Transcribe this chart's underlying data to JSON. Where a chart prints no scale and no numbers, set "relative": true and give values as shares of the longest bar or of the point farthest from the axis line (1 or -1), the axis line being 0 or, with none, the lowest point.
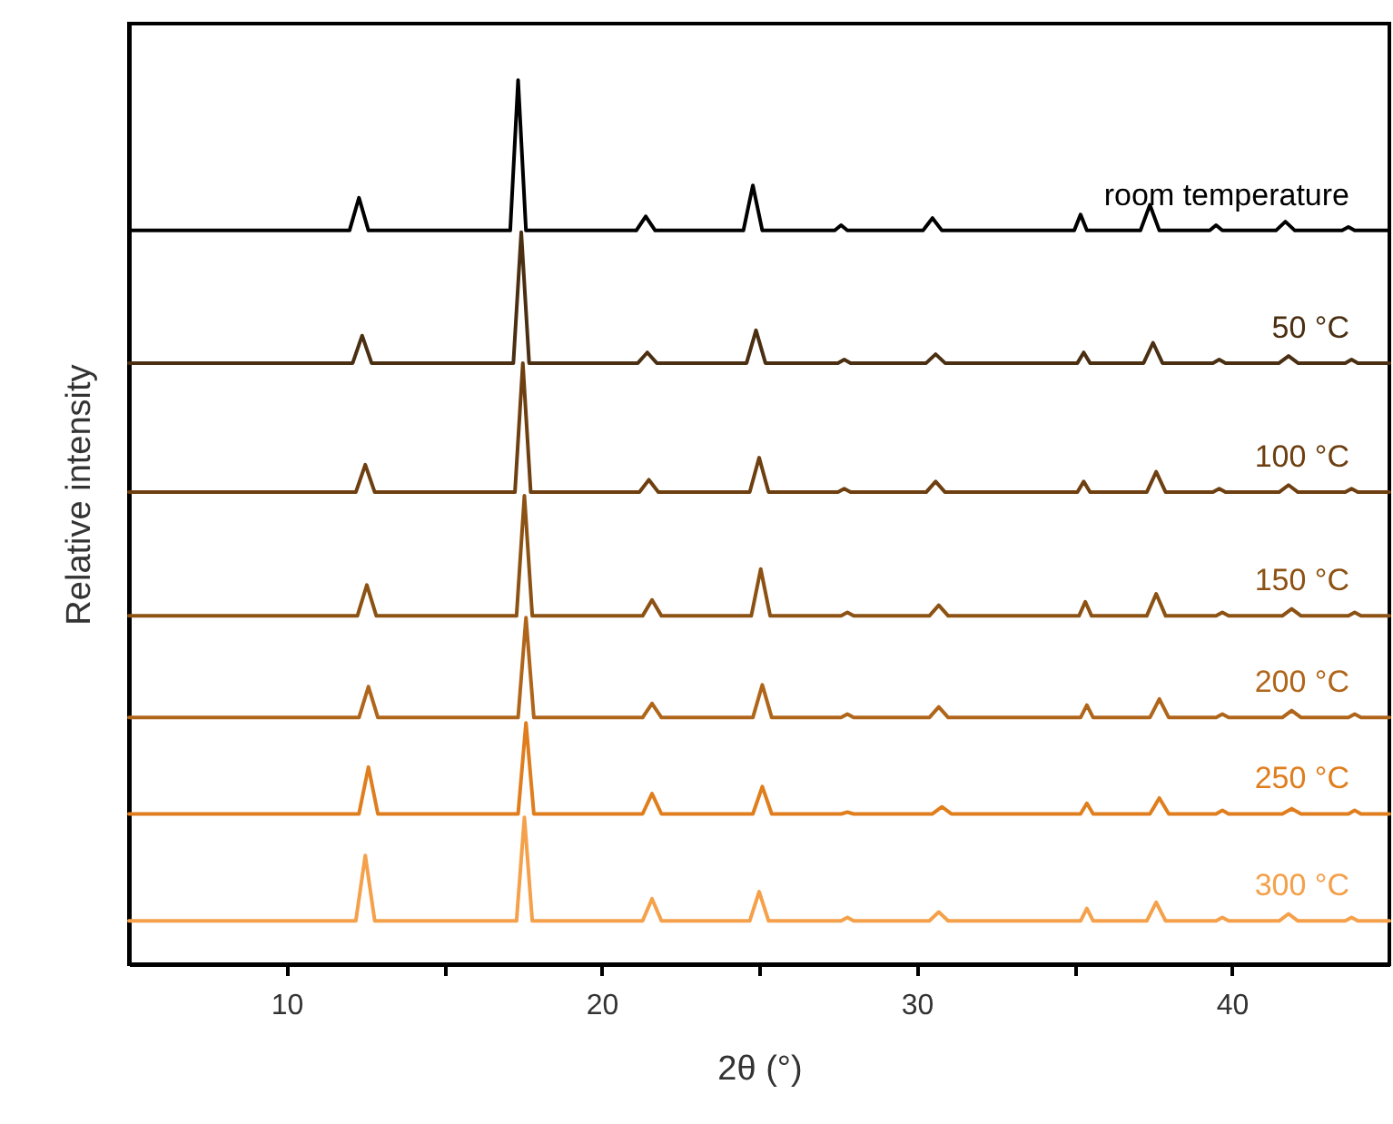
{
  "chart_data": {
    "type": "line",
    "relative": true,
    "xlabel": "2θ (°)",
    "ylabel": "Relative intensity",
    "xlim": [
      5,
      45
    ],
    "xticks": [
      10,
      {
        "value": 15,
        "label": null
      },
      20,
      {
        "value": 25,
        "label": null
      },
      30,
      {
        "value": 35,
        "label": null
      },
      40
    ],
    "legend": false,
    "grid": false,
    "line_style": "solid",
    "marker": "none",
    "series": [
      {
        "name": "room temperature",
        "color": "#000000",
        "x": [
          5,
          12.0,
          12.3,
          12.6,
          17.1,
          17.35,
          17.6,
          21.1,
          21.4,
          21.7,
          24.5,
          24.8,
          25.1,
          27.4,
          27.6,
          27.8,
          30.2,
          30.5,
          30.8,
          35.0,
          35.2,
          35.4,
          37.1,
          37.4,
          37.7,
          39.3,
          39.5,
          39.7,
          41.4,
          41.7,
          42.0,
          43.5,
          43.7,
          43.9,
          45
        ],
        "values": [
          0.83,
          0.83,
          0.867,
          0.83,
          0.83,
          1.0,
          0.83,
          0.83,
          0.846,
          0.83,
          0.83,
          0.881,
          0.83,
          0.83,
          0.836,
          0.83,
          0.83,
          0.844,
          0.83,
          0.83,
          0.848,
          0.83,
          0.83,
          0.859,
          0.83,
          0.83,
          0.836,
          0.83,
          0.83,
          0.84,
          0.83,
          0.83,
          0.834,
          0.83,
          0.83
        ]
      },
      {
        "name": "50 °C",
        "color": "#4a2f12",
        "x": [
          5,
          12.1,
          12.4,
          12.7,
          17.2,
          17.45,
          17.7,
          21.15,
          21.45,
          21.75,
          24.6,
          24.9,
          25.2,
          27.5,
          27.7,
          27.9,
          30.3,
          30.6,
          30.9,
          35.1,
          35.3,
          35.5,
          37.2,
          37.5,
          37.8,
          39.4,
          39.6,
          39.8,
          41.5,
          41.8,
          42.1,
          43.6,
          43.8,
          44.0,
          45
        ],
        "values": [
          0.68,
          0.68,
          0.711,
          0.68,
          0.68,
          0.828,
          0.68,
          0.68,
          0.692,
          0.68,
          0.68,
          0.717,
          0.68,
          0.68,
          0.684,
          0.68,
          0.68,
          0.69,
          0.68,
          0.68,
          0.692,
          0.68,
          0.68,
          0.703,
          0.68,
          0.68,
          0.684,
          0.68,
          0.68,
          0.688,
          0.68,
          0.68,
          0.684,
          0.68,
          0.68
        ]
      },
      {
        "name": "100 °C",
        "color": "#6e3f10",
        "x": [
          5,
          12.2,
          12.5,
          12.8,
          17.25,
          17.5,
          17.75,
          21.2,
          21.5,
          21.8,
          24.7,
          25.0,
          25.3,
          27.5,
          27.7,
          27.9,
          30.3,
          30.6,
          30.9,
          35.1,
          35.3,
          35.5,
          37.3,
          37.6,
          37.9,
          39.4,
          39.6,
          39.8,
          41.5,
          41.8,
          42.1,
          43.6,
          43.8,
          44.0,
          45
        ],
        "values": [
          0.534,
          0.534,
          0.565,
          0.534,
          0.534,
          0.68,
          0.534,
          0.534,
          0.548,
          0.534,
          0.534,
          0.573,
          0.534,
          0.534,
          0.538,
          0.534,
          0.534,
          0.546,
          0.534,
          0.534,
          0.546,
          0.534,
          0.534,
          0.557,
          0.534,
          0.534,
          0.538,
          0.534,
          0.534,
          0.542,
          0.534,
          0.534,
          0.538,
          0.534,
          0.534
        ]
      },
      {
        "name": "150 °C",
        "color": "#8c5214",
        "x": [
          5,
          12.25,
          12.55,
          12.85,
          17.3,
          17.55,
          17.8,
          21.3,
          21.6,
          21.9,
          24.75,
          25.05,
          25.35,
          27.6,
          27.8,
          28.0,
          30.4,
          30.7,
          31.0,
          35.15,
          35.35,
          35.55,
          37.3,
          37.6,
          37.9,
          39.5,
          39.7,
          39.9,
          41.6,
          41.9,
          42.2,
          43.7,
          43.9,
          44.1,
          45
        ],
        "values": [
          0.394,
          0.394,
          0.429,
          0.394,
          0.394,
          0.53,
          0.394,
          0.394,
          0.412,
          0.394,
          0.394,
          0.447,
          0.394,
          0.394,
          0.398,
          0.394,
          0.394,
          0.406,
          0.394,
          0.394,
          0.41,
          0.394,
          0.394,
          0.419,
          0.394,
          0.394,
          0.398,
          0.394,
          0.394,
          0.402,
          0.394,
          0.394,
          0.398,
          0.394,
          0.394
        ]
      },
      {
        "name": "200 °C",
        "color": "#b0661a",
        "x": [
          5,
          12.3,
          12.6,
          12.9,
          17.35,
          17.6,
          17.85,
          21.3,
          21.6,
          21.9,
          24.8,
          25.1,
          25.4,
          27.6,
          27.8,
          28.0,
          30.4,
          30.7,
          31.0,
          35.2,
          35.4,
          35.6,
          37.4,
          37.7,
          38.0,
          39.5,
          39.7,
          39.9,
          41.6,
          41.9,
          42.2,
          43.7,
          43.9,
          44.1,
          45
        ],
        "values": [
          0.279,
          0.279,
          0.314,
          0.279,
          0.279,
          0.392,
          0.279,
          0.279,
          0.295,
          0.279,
          0.279,
          0.316,
          0.279,
          0.279,
          0.283,
          0.279,
          0.279,
          0.291,
          0.279,
          0.279,
          0.293,
          0.279,
          0.279,
          0.3,
          0.279,
          0.279,
          0.283,
          0.279,
          0.279,
          0.287,
          0.279,
          0.279,
          0.283,
          0.279,
          0.279
        ]
      },
      {
        "name": "250 °C",
        "color": "#e07e1e",
        "x": [
          5,
          12.3,
          12.6,
          12.9,
          17.35,
          17.6,
          17.85,
          21.3,
          21.6,
          21.9,
          24.8,
          25.1,
          25.4,
          27.6,
          27.8,
          28.0,
          30.5,
          30.8,
          31.1,
          35.2,
          35.4,
          35.6,
          37.4,
          37.7,
          38.0,
          39.5,
          39.7,
          39.9,
          41.6,
          41.9,
          42.2,
          43.7,
          43.9,
          44.1,
          45
        ],
        "values": [
          0.17,
          0.17,
          0.223,
          0.17,
          0.17,
          0.273,
          0.17,
          0.17,
          0.193,
          0.17,
          0.17,
          0.201,
          0.17,
          0.17,
          0.172,
          0.17,
          0.17,
          0.178,
          0.17,
          0.17,
          0.182,
          0.17,
          0.17,
          0.188,
          0.17,
          0.17,
          0.174,
          0.17,
          0.17,
          0.176,
          0.17,
          0.17,
          0.174,
          0.17,
          0.17
        ]
      },
      {
        "name": "300 °C",
        "color": "#f5a04a",
        "x": [
          5,
          12.2,
          12.5,
          12.8,
          17.3,
          17.55,
          17.8,
          21.3,
          21.6,
          21.9,
          24.7,
          25.0,
          25.3,
          27.6,
          27.8,
          28.0,
          30.4,
          30.7,
          31.0,
          35.2,
          35.4,
          35.6,
          37.3,
          37.6,
          37.9,
          39.5,
          39.7,
          39.9,
          41.5,
          41.8,
          42.1,
          43.6,
          43.8,
          44.0,
          45
        ],
        "values": [
          0.049,
          0.049,
          0.123,
          0.049,
          0.049,
          0.166,
          0.049,
          0.049,
          0.074,
          0.049,
          0.049,
          0.082,
          0.049,
          0.049,
          0.053,
          0.049,
          0.049,
          0.059,
          0.049,
          0.049,
          0.063,
          0.049,
          0.049,
          0.07,
          0.049,
          0.049,
          0.053,
          0.049,
          0.049,
          0.057,
          0.049,
          0.049,
          0.053,
          0.049,
          0.049
        ]
      }
    ]
  }
}
